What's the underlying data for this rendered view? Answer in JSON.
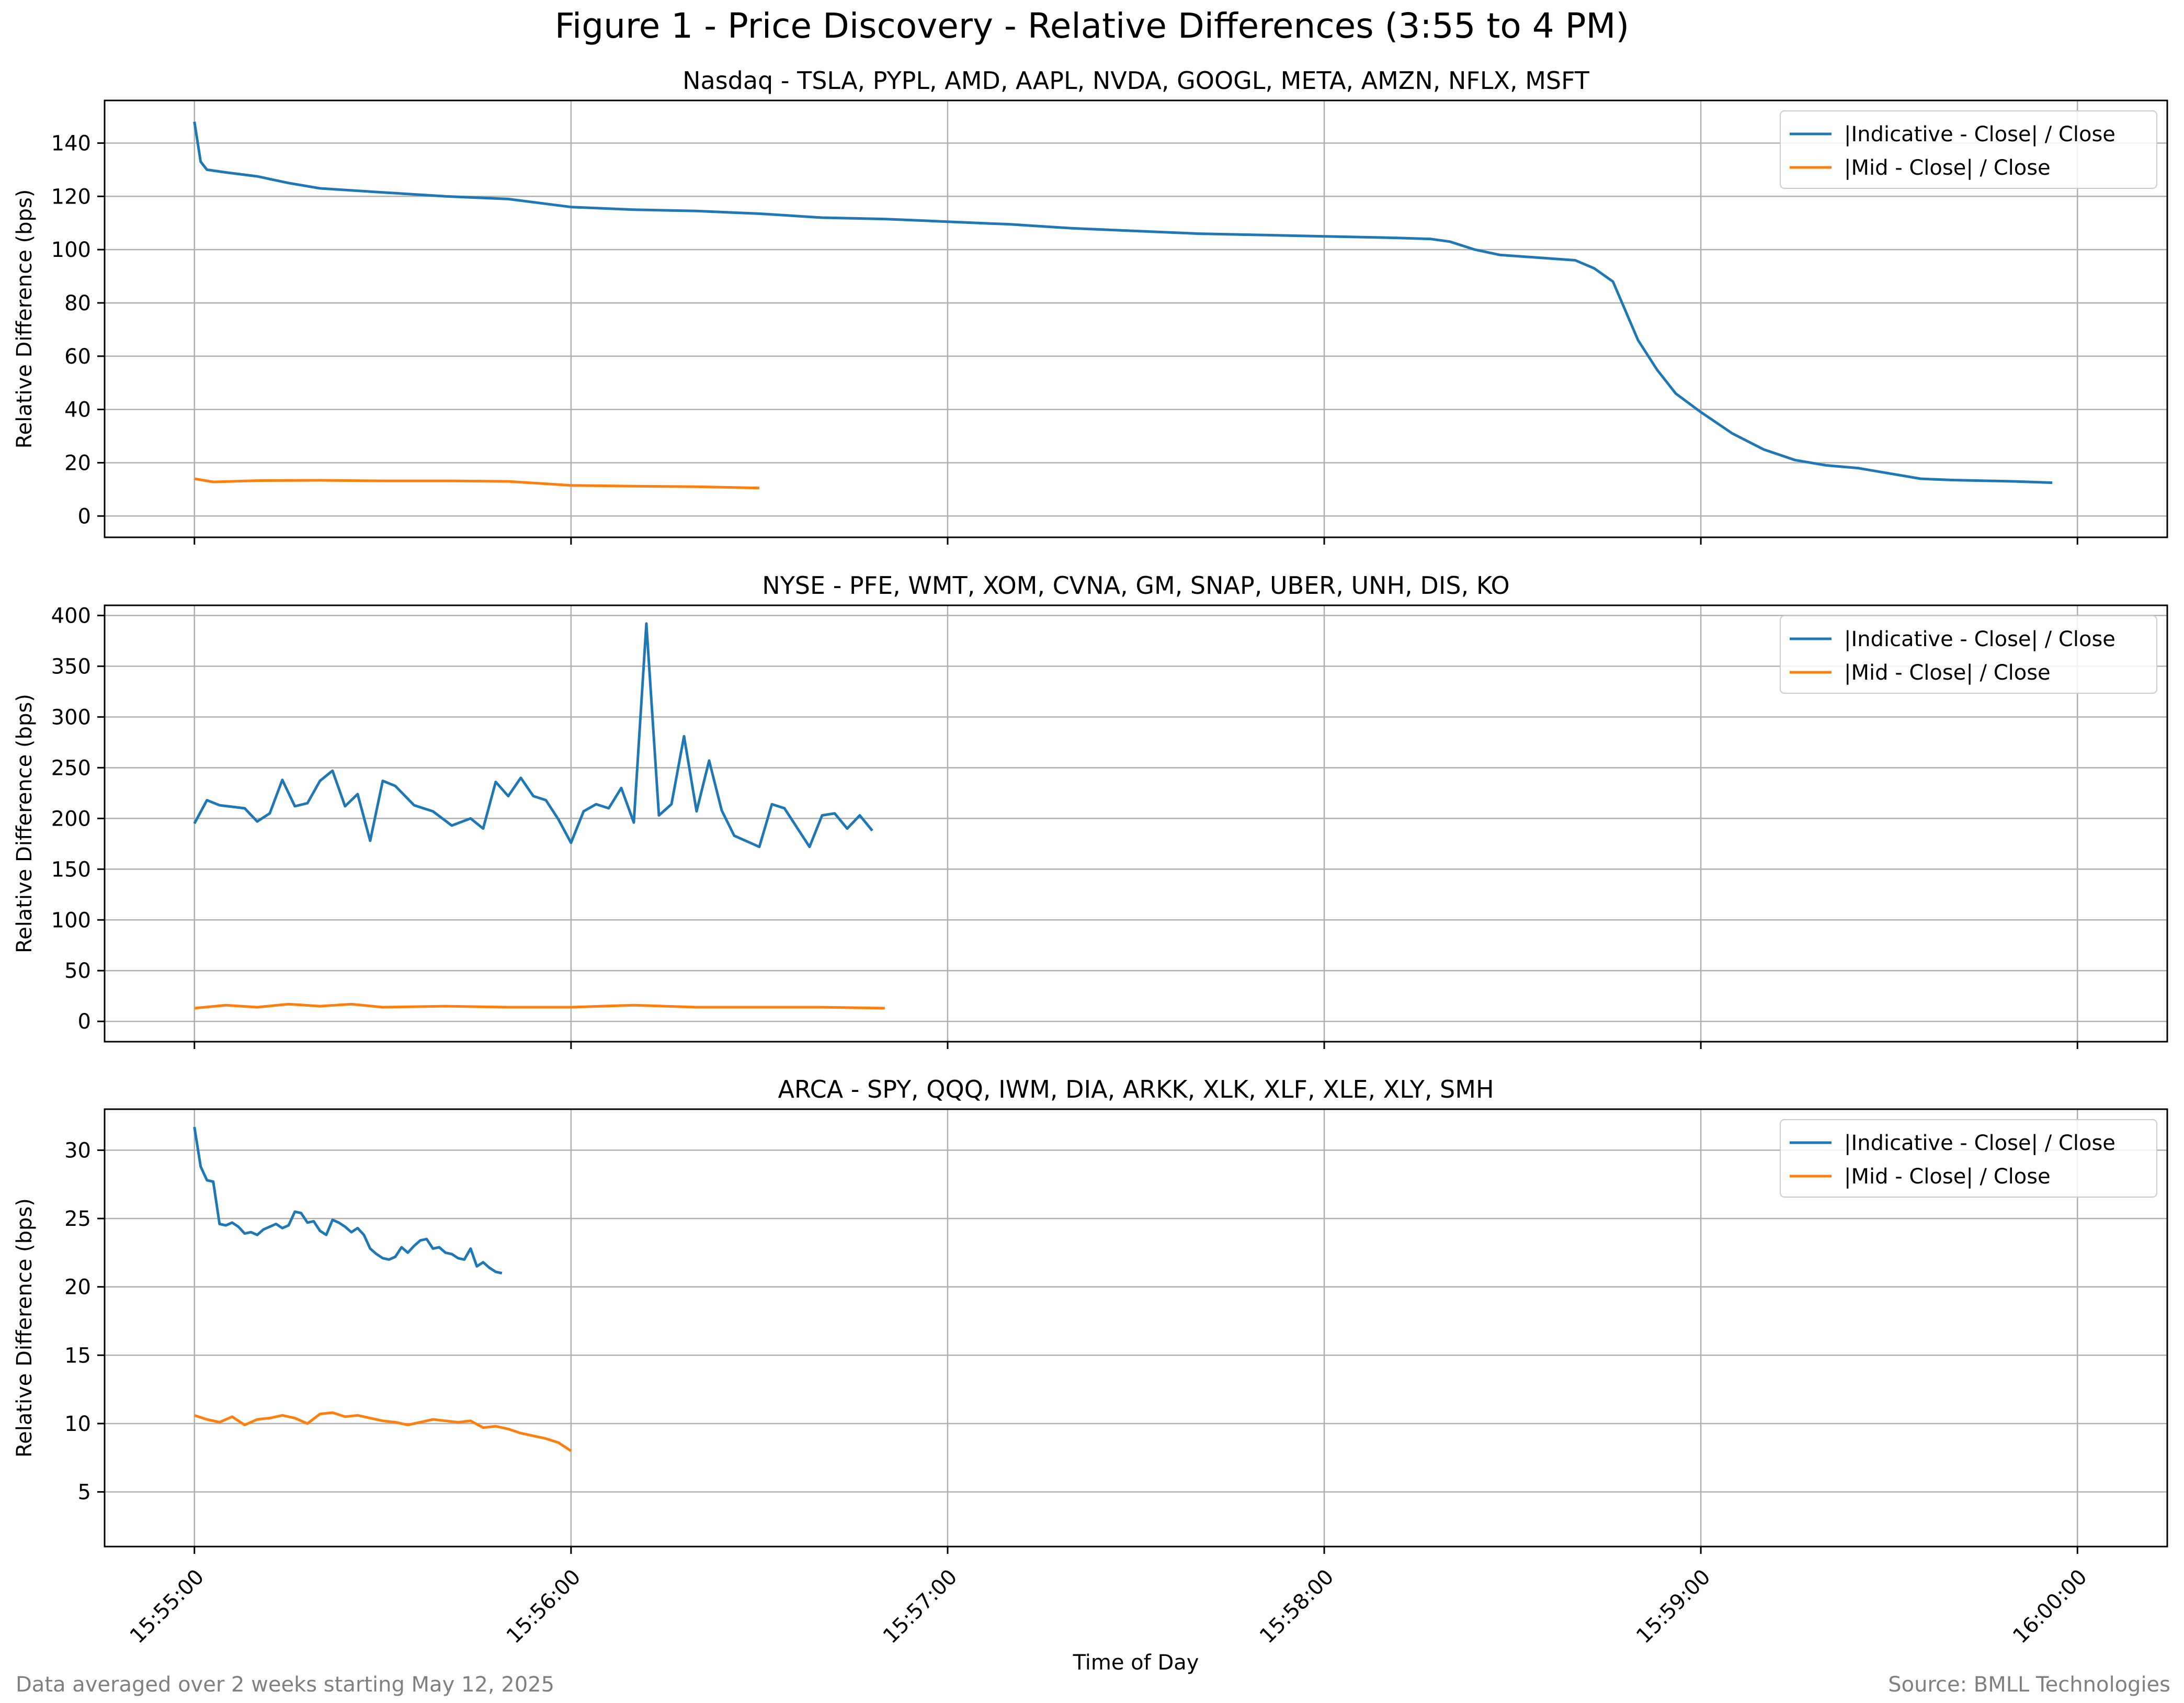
{
  "figure": {
    "title": "Figure 1 - Price Discovery - Relative Differences (3:55 to 4 PM)",
    "xlabel": "Time of Day",
    "footnote_left": "Data averaged over 2 weeks starting May 12, 2025",
    "footnote_right": "Source: BMLL Technologies",
    "colors": {
      "indicative": "#1f77b4",
      "mid": "#ff7f0e",
      "grid": "#b0b0b0",
      "footnote": "#808080"
    }
  },
  "chart_data": [
    {
      "type": "line",
      "title": "Nasdaq - TSLA, PYPL, AMD, AAPL, NVDA, GOOGL, META, AMZN, NFLX, MSFT",
      "xlabel": "",
      "ylabel": "Relative Difference (bps)",
      "xlim": [
        "15:55:00",
        "16:00:00"
      ],
      "ylim": [
        -8,
        156
      ],
      "yticks": [
        0,
        20,
        40,
        60,
        80,
        100,
        120,
        140
      ],
      "xticks": [
        "15:55:00",
        "15:56:00",
        "15:57:00",
        "15:58:00",
        "15:59:00",
        "16:00:00"
      ],
      "grid": true,
      "legend": "top-right",
      "series": [
        {
          "name": "|Indicative - Close| / Close",
          "color": "#1f77b4",
          "points": [
            [
              "15:55:00",
              148
            ],
            [
              "15:55:01",
              133
            ],
            [
              "15:55:02",
              130
            ],
            [
              "15:55:05",
              129
            ],
            [
              "15:55:10",
              127.5
            ],
            [
              "15:55:15",
              125
            ],
            [
              "15:55:20",
              123
            ],
            [
              "15:55:30",
              121.5
            ],
            [
              "15:55:40",
              120
            ],
            [
              "15:55:50",
              119
            ],
            [
              "15:56:00",
              116
            ],
            [
              "15:56:10",
              115
            ],
            [
              "15:56:20",
              114.5
            ],
            [
              "15:56:30",
              113.5
            ],
            [
              "15:56:40",
              112
            ],
            [
              "15:56:50",
              111.5
            ],
            [
              "15:57:00",
              110.5
            ],
            [
              "15:57:10",
              109.5
            ],
            [
              "15:57:20",
              108
            ],
            [
              "15:57:30",
              107
            ],
            [
              "15:57:40",
              106
            ],
            [
              "15:57:50",
              105.5
            ],
            [
              "15:58:00",
              105
            ],
            [
              "15:58:10",
              104.5
            ],
            [
              "15:58:17",
              104
            ],
            [
              "15:58:20",
              103
            ],
            [
              "15:58:24",
              100
            ],
            [
              "15:58:28",
              98
            ],
            [
              "15:58:34",
              97
            ],
            [
              "15:58:40",
              96
            ],
            [
              "15:58:43",
              93
            ],
            [
              "15:58:46",
              88
            ],
            [
              "15:58:48",
              77
            ],
            [
              "15:58:50",
              66
            ],
            [
              "15:58:53",
              55
            ],
            [
              "15:58:56",
              46
            ],
            [
              "15:59:00",
              39
            ],
            [
              "15:59:05",
              31
            ],
            [
              "15:59:10",
              25
            ],
            [
              "15:59:15",
              21
            ],
            [
              "15:59:20",
              19
            ],
            [
              "15:59:25",
              18
            ],
            [
              "15:59:30",
              16
            ],
            [
              "15:59:35",
              14
            ],
            [
              "15:59:40",
              13.5
            ],
            [
              "15:59:50",
              13
            ],
            [
              "15:59:56",
              12.5
            ]
          ],
          "points_tail": [
            [
              "16:00:00",
              12.5
            ]
          ]
        },
        {
          "name": "|Mid - Close| / Close",
          "color": "#ff7f0e",
          "points": [
            [
              "15:55:00",
              14
            ],
            [
              "15:55:03",
              12.8
            ],
            [
              "15:55:10",
              13.3
            ],
            [
              "15:55:20",
              13.4
            ],
            [
              "15:55:30",
              13.2
            ],
            [
              "15:55:40",
              13.2
            ],
            [
              "15:55:50",
              13.0
            ],
            [
              "15:56:00",
              11.5
            ],
            [
              "15:56:10",
              11.2
            ],
            [
              "15:56:20",
              11.0
            ],
            [
              "15:56:30",
              10.5
            ]
          ]
        }
      ]
    },
    {
      "type": "line",
      "title": "NYSE - PFE, WMT, XOM, CVNA, GM, SNAP, UBER, UNH, DIS, KO",
      "xlabel": "",
      "ylabel": "Relative Difference (bps)",
      "xlim": [
        "15:55:00",
        "16:00:00"
      ],
      "ylim": [
        -20,
        410
      ],
      "yticks": [
        0,
        50,
        100,
        150,
        200,
        250,
        300,
        350,
        400
      ],
      "xticks": [
        "15:55:00",
        "15:56:00",
        "15:57:00",
        "15:58:00",
        "15:59:00",
        "16:00:00"
      ],
      "grid": true,
      "legend": "top-right",
      "series": [
        {
          "name": "|Indicative - Close| / Close",
          "color": "#1f77b4",
          "points": [
            [
              "15:55:00",
              195
            ],
            [
              "15:55:02",
              218
            ],
            [
              "15:55:04",
              213
            ],
            [
              "15:55:08",
              210
            ],
            [
              "15:55:10",
              197
            ],
            [
              "15:55:12",
              205
            ],
            [
              "15:55:14",
              238
            ],
            [
              "15:55:16",
              212
            ],
            [
              "15:55:18",
              215
            ],
            [
              "15:55:20",
              237
            ],
            [
              "15:55:22",
              247
            ],
            [
              "15:55:24",
              212
            ],
            [
              "15:55:26",
              224
            ],
            [
              "15:55:28",
              178
            ],
            [
              "15:55:30",
              237
            ],
            [
              "15:55:32",
              232
            ],
            [
              "15:55:35",
              213
            ],
            [
              "15:55:38",
              207
            ],
            [
              "15:55:41",
              193
            ],
            [
              "15:55:44",
              200
            ],
            [
              "15:55:46",
              190
            ],
            [
              "15:55:48",
              236
            ],
            [
              "15:55:50",
              222
            ],
            [
              "15:55:52",
              240
            ],
            [
              "15:55:54",
              222
            ],
            [
              "15:55:56",
              218
            ],
            [
              "15:55:58",
              199
            ],
            [
              "15:56:00",
              176
            ],
            [
              "15:56:02",
              207
            ],
            [
              "15:56:04",
              214
            ],
            [
              "15:56:06",
              210
            ],
            [
              "15:56:08",
              230
            ],
            [
              "15:56:10",
              196
            ],
            [
              "15:56:12",
              392
            ],
            [
              "15:56:14",
              203
            ],
            [
              "15:56:16",
              214
            ],
            [
              "15:56:18",
              281
            ],
            [
              "15:56:20",
              207
            ],
            [
              "15:56:22",
              257
            ],
            [
              "15:56:24",
              208
            ],
            [
              "15:56:26",
              183
            ],
            [
              "15:56:30",
              172
            ],
            [
              "15:56:32",
              214
            ],
            [
              "15:56:34",
              210
            ],
            [
              "15:56:38",
              172
            ],
            [
              "15:56:40",
              203
            ],
            [
              "15:56:42",
              205
            ],
            [
              "15:56:44",
              190
            ],
            [
              "15:56:46",
              203
            ],
            [
              "15:56:48",
              188
            ]
          ]
        },
        {
          "name": "|Mid - Close| / Close",
          "color": "#ff7f0e",
          "points": [
            [
              "15:55:00",
              13
            ],
            [
              "15:55:05",
              16
            ],
            [
              "15:55:10",
              14
            ],
            [
              "15:55:15",
              17
            ],
            [
              "15:55:20",
              15
            ],
            [
              "15:55:25",
              17
            ],
            [
              "15:55:30",
              14
            ],
            [
              "15:55:40",
              15
            ],
            [
              "15:55:50",
              14
            ],
            [
              "15:56:00",
              14
            ],
            [
              "15:56:10",
              16
            ],
            [
              "15:56:20",
              14
            ],
            [
              "15:56:30",
              14
            ],
            [
              "15:56:40",
              14
            ],
            [
              "15:56:50",
              13
            ]
          ]
        }
      ]
    },
    {
      "type": "line",
      "title": "ARCA - SPY, QQQ, IWM, DIA, ARKK, XLK, XLF, XLE, XLY, SMH",
      "xlabel": "Time of Day",
      "ylabel": "Relative Difference (bps)",
      "xlim": [
        "15:55:00",
        "16:00:00"
      ],
      "ylim": [
        1.0,
        33.0
      ],
      "yticks": [
        5,
        10,
        15,
        20,
        25,
        30
      ],
      "xticks": [
        "15:55:00",
        "15:56:00",
        "15:57:00",
        "15:58:00",
        "15:59:00",
        "16:00:00"
      ],
      "grid": true,
      "legend": "top-right",
      "series": [
        {
          "name": "|Indicative - Close| / Close",
          "color": "#1f77b4",
          "points": [
            [
              "15:55:00",
              31.7
            ],
            [
              "15:55:01",
              28.8
            ],
            [
              "15:55:02",
              27.8
            ],
            [
              "15:55:03",
              27.7
            ],
            [
              "15:55:04",
              24.6
            ],
            [
              "15:55:05",
              24.5
            ],
            [
              "15:55:06",
              24.7
            ],
            [
              "15:55:07",
              24.4
            ],
            [
              "15:55:08",
              23.9
            ],
            [
              "15:55:09",
              24.0
            ],
            [
              "15:55:10",
              23.8
            ],
            [
              "15:55:11",
              24.2
            ],
            [
              "15:55:12",
              24.4
            ],
            [
              "15:55:13",
              24.6
            ],
            [
              "15:55:14",
              24.3
            ],
            [
              "15:55:15",
              24.5
            ],
            [
              "15:55:16",
              25.5
            ],
            [
              "15:55:17",
              25.4
            ],
            [
              "15:55:18",
              24.7
            ],
            [
              "15:55:19",
              24.8
            ],
            [
              "15:55:20",
              24.1
            ],
            [
              "15:55:21",
              23.8
            ],
            [
              "15:55:22",
              24.9
            ],
            [
              "15:55:23",
              24.7
            ],
            [
              "15:55:24",
              24.4
            ],
            [
              "15:55:25",
              24.0
            ],
            [
              "15:55:26",
              24.3
            ],
            [
              "15:55:27",
              23.8
            ],
            [
              "15:55:28",
              22.8
            ],
            [
              "15:55:29",
              22.4
            ],
            [
              "15:55:30",
              22.1
            ],
            [
              "15:55:31",
              22.0
            ],
            [
              "15:55:32",
              22.2
            ],
            [
              "15:55:33",
              22.9
            ],
            [
              "15:55:34",
              22.5
            ],
            [
              "15:55:35",
              23.0
            ],
            [
              "15:55:36",
              23.4
            ],
            [
              "15:55:37",
              23.5
            ],
            [
              "15:55:38",
              22.8
            ],
            [
              "15:55:39",
              22.9
            ],
            [
              "15:55:40",
              22.5
            ],
            [
              "15:55:41",
              22.4
            ],
            [
              "15:55:42",
              22.1
            ],
            [
              "15:55:43",
              22.0
            ],
            [
              "15:55:44",
              22.8
            ],
            [
              "15:55:45",
              21.5
            ],
            [
              "15:55:46",
              21.8
            ],
            [
              "15:55:47",
              21.4
            ],
            [
              "15:55:48",
              21.1
            ],
            [
              "15:55:49",
              21.0
            ]
          ]
        },
        {
          "name": "|Mid - Close| / Close",
          "color": "#ff7f0e",
          "points": [
            [
              "15:55:00",
              10.6
            ],
            [
              "15:55:02",
              10.3
            ],
            [
              "15:55:04",
              10.1
            ],
            [
              "15:55:06",
              10.5
            ],
            [
              "15:55:08",
              9.9
            ],
            [
              "15:55:10",
              10.3
            ],
            [
              "15:55:12",
              10.4
            ],
            [
              "15:55:14",
              10.6
            ],
            [
              "15:55:16",
              10.4
            ],
            [
              "15:55:18",
              10.0
            ],
            [
              "15:55:20",
              10.7
            ],
            [
              "15:55:22",
              10.8
            ],
            [
              "15:55:24",
              10.5
            ],
            [
              "15:55:26",
              10.6
            ],
            [
              "15:55:28",
              10.4
            ],
            [
              "15:55:30",
              10.2
            ],
            [
              "15:55:32",
              10.1
            ],
            [
              "15:55:34",
              9.9
            ],
            [
              "15:55:36",
              10.1
            ],
            [
              "15:55:38",
              10.3
            ],
            [
              "15:55:40",
              10.2
            ],
            [
              "15:55:42",
              10.1
            ],
            [
              "15:55:44",
              10.2
            ],
            [
              "15:55:46",
              9.7
            ],
            [
              "15:55:48",
              9.8
            ],
            [
              "15:55:50",
              9.6
            ],
            [
              "15:55:52",
              9.3
            ],
            [
              "15:55:54",
              9.1
            ],
            [
              "15:55:56",
              8.9
            ],
            [
              "15:55:58",
              8.6
            ],
            [
              "15:56:00",
              8.0
            ]
          ]
        }
      ]
    }
  ]
}
